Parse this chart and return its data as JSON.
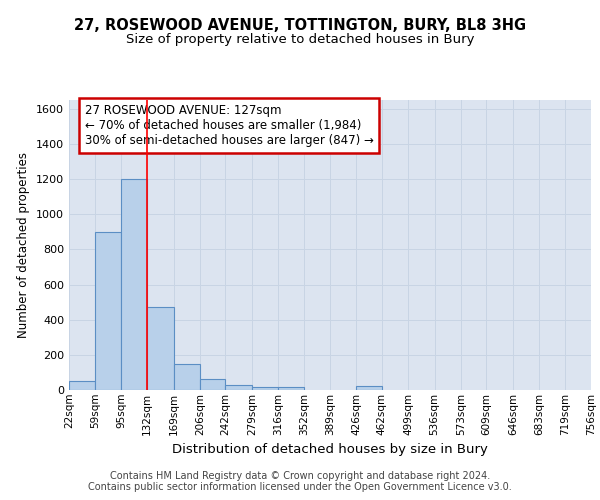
{
  "title_line1": "27, ROSEWOOD AVENUE, TOTTINGTON, BURY, BL8 3HG",
  "title_line2": "Size of property relative to detached houses in Bury",
  "xlabel": "Distribution of detached houses by size in Bury",
  "ylabel": "Number of detached properties",
  "footer_line1": "Contains HM Land Registry data © Crown copyright and database right 2024.",
  "footer_line2": "Contains public sector information licensed under the Open Government Licence v3.0.",
  "bar_edges": [
    22,
    59,
    95,
    132,
    169,
    206,
    242,
    279,
    316,
    352,
    389,
    426,
    462,
    499,
    536,
    573,
    609,
    646,
    683,
    719,
    756
  ],
  "bar_heights": [
    50,
    900,
    1200,
    470,
    150,
    60,
    30,
    15,
    15,
    0,
    0,
    20,
    0,
    0,
    0,
    0,
    0,
    0,
    0,
    0
  ],
  "bar_color": "#b8d0ea",
  "bar_edge_color": "#5b8ec4",
  "red_line_x": 132,
  "ylim": [
    0,
    1650
  ],
  "yticks": [
    0,
    200,
    400,
    600,
    800,
    1000,
    1200,
    1400,
    1600
  ],
  "annotation_text": "27 ROSEWOOD AVENUE: 127sqm\n← 70% of detached houses are smaller (1,984)\n30% of semi-detached houses are larger (847) →",
  "annotation_box_color": "#ffffff",
  "annotation_box_edge": "#cc0000",
  "grid_color": "#c8d4e4",
  "background_color": "#dce4f0",
  "title1_fontsize": 10.5,
  "title2_fontsize": 9.5,
  "ylabel_fontsize": 8.5,
  "xlabel_fontsize": 9.5,
  "annotation_fontsize": 8.5,
  "ytick_fontsize": 8,
  "xtick_fontsize": 7.5,
  "footer_fontsize": 7
}
